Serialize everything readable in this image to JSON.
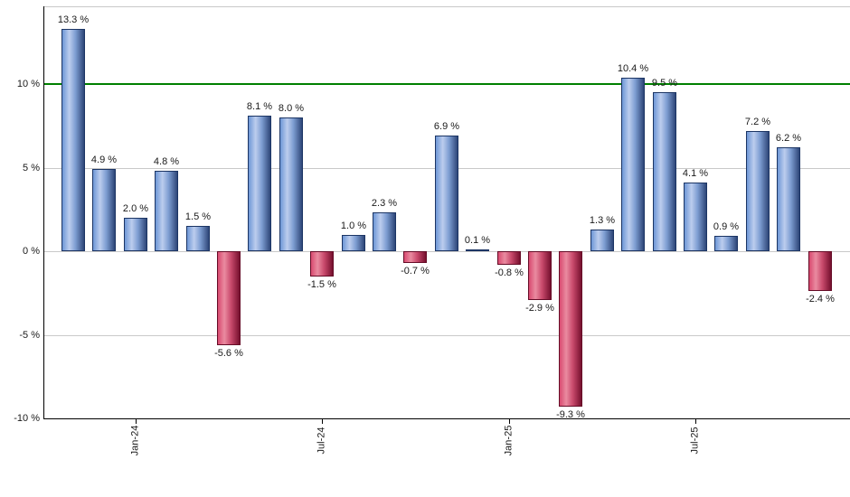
{
  "chart_data": {
    "type": "bar",
    "title": "",
    "xlabel": "",
    "ylabel": "",
    "values": [
      13.3,
      4.9,
      2.0,
      4.8,
      1.5,
      -5.6,
      8.1,
      8.0,
      -1.5,
      1.0,
      2.3,
      -0.7,
      6.9,
      0.1,
      -0.8,
      -2.9,
      -9.3,
      1.3,
      10.4,
      9.5,
      4.1,
      0.9,
      7.2,
      6.2,
      -2.4
    ],
    "bar_labels": [
      "13.3 %",
      "4.9 %",
      "2.0 %",
      "4.8 %",
      "1.5 %",
      "-5.6 %",
      "8.1 %",
      "8.0 %",
      "-1.5 %",
      "1.0 %",
      "2.3 %",
      "-0.7 %",
      "6.9 %",
      "0.1 %",
      "-0.8 %",
      "-2.9 %",
      "-9.3 %",
      "1.3 %",
      "10.4 %",
      "9.5 %",
      "4.1 %",
      "0.9 %",
      "7.2 %",
      "6.2 %",
      "-2.4 %"
    ],
    "x_ticks": [
      {
        "bar_index": 2,
        "label": "Jan-24"
      },
      {
        "bar_index": 8,
        "label": "Jul-24"
      },
      {
        "bar_index": 14,
        "label": "Jan-25"
      },
      {
        "bar_index": 20,
        "label": "Jul-25"
      }
    ],
    "y_ticks": [
      {
        "value": 10,
        "label": "10 %"
      },
      {
        "value": 5,
        "label": "5 %"
      },
      {
        "value": 0,
        "label": "0 %"
      },
      {
        "value": -5,
        "label": "-5 %"
      },
      {
        "value": -10,
        "label": "-10 %"
      }
    ],
    "gridline_values": [
      5,
      0,
      -5
    ],
    "ylim": [
      -10,
      14.65
    ],
    "grid": true,
    "legend": "none",
    "threshold_line": {
      "value": 10,
      "color": "#008000"
    },
    "colors": {
      "positive_bar_left": "#6e97d6",
      "positive_bar_center": "#bccdee",
      "positive_bar_right": "#2e4678",
      "positive_bar_border": "#1c3564",
      "negative_bar_left": "#d84a70",
      "negative_bar_center": "#ea8ba0",
      "negative_bar_right": "#76102e",
      "negative_bar_border": "#650b26",
      "gridline": "#c9c9c9",
      "axis": "#000000",
      "text": "#1a1a1a",
      "background": "#ffffff"
    }
  }
}
